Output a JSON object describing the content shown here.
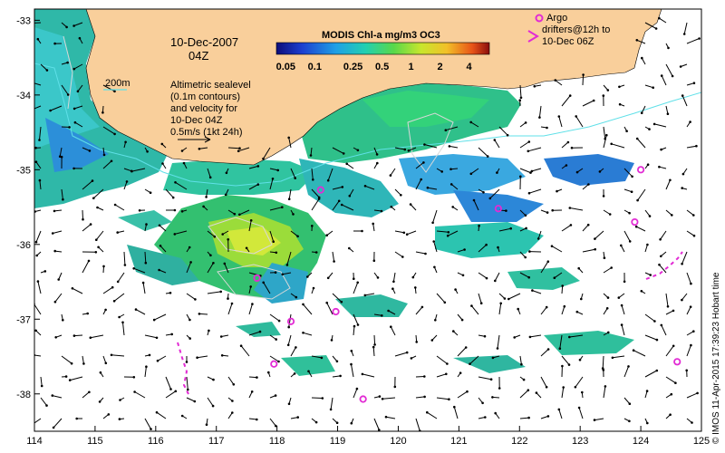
{
  "map": {
    "date_line": "10-Dec-2007",
    "time_line": "04Z",
    "colorbar_title": "MODIS Chl-a mg/m3 OC3",
    "colorbar_ticks": [
      "0.05",
      "0.1",
      "0.25",
      "0.5",
      "1",
      "2",
      "4"
    ],
    "isobath_label": "200m",
    "sealevel_note": [
      "Altimetric sealevel",
      "(0.1m contours)",
      "and velocity for",
      "10-Dec 04Z"
    ],
    "velocity_scale_label": "0.5m/s (1kt 24h)",
    "argo_legend": [
      "Argo",
      "drifters@12h to",
      "10-Dec 06Z"
    ],
    "credit": "© IMOS 11-Apr-2015 17:39:23 Hobart time",
    "lon_ticks": [
      "114",
      "115",
      "116",
      "117",
      "118",
      "119",
      "120",
      "121",
      "122",
      "123",
      "124",
      "125"
    ],
    "lat_ticks": [
      "-33",
      "-34",
      "-35",
      "-36",
      "-37",
      "-38"
    ],
    "colors": {
      "land": "#f9cf9b",
      "ocean": "#ffffff",
      "chl_low": "#1f63c8",
      "chl_mid": "#27c2a0",
      "chl_high": "#c8e62d",
      "argo": "#e22bd4",
      "isobath": "#5fe0e8",
      "contour": "#d8d8d8"
    },
    "argo_floats": [
      {
        "lon": 118.72,
        "lat": -35.27
      },
      {
        "lon": 121.65,
        "lat": -35.52
      },
      {
        "lon": 124.0,
        "lat": -35.0
      },
      {
        "lon": 123.9,
        "lat": -35.7
      },
      {
        "lon": 117.67,
        "lat": -36.45
      },
      {
        "lon": 118.23,
        "lat": -37.03
      },
      {
        "lon": 118.97,
        "lat": -36.9
      },
      {
        "lon": 117.95,
        "lat": -37.6
      },
      {
        "lon": 119.42,
        "lat": -38.07
      },
      {
        "lon": 124.6,
        "lat": -37.57
      }
    ]
  }
}
